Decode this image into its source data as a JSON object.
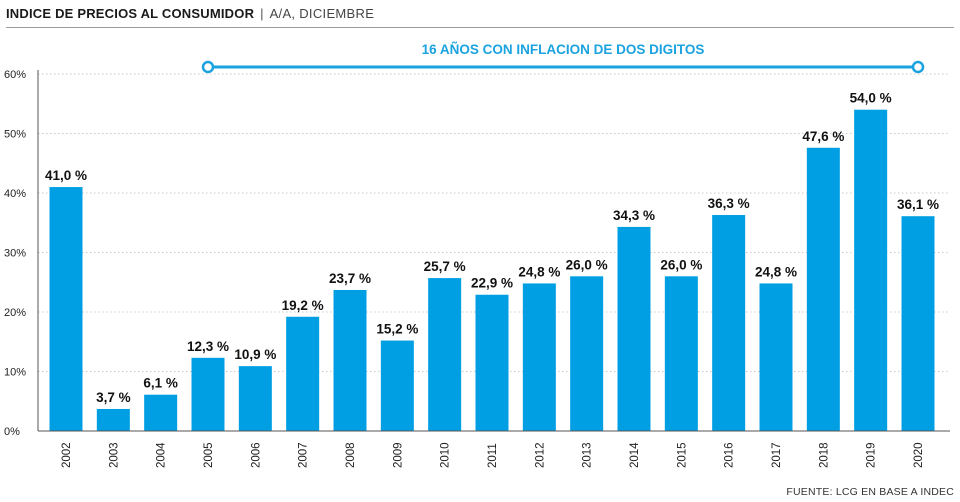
{
  "header": {
    "title": "INDICE DE PRECIOS AL CONSUMIDOR",
    "separator": "|",
    "subtitle": "A/A, DICIEMBRE"
  },
  "annotation": {
    "label": "16 AÑOS CON INFLACION DE DOS DIGITOS",
    "from": "2005",
    "to": "2020",
    "color": "#1ba3e0"
  },
  "source": "FUENTE: LCG EN BASE A INDEC",
  "chart_data": {
    "type": "bar",
    "title": "INDICE DE PRECIOS AL CONSUMIDOR",
    "subtitle": "A/A, DICIEMBRE",
    "categories": [
      "2002",
      "2003",
      "2004",
      "2005",
      "2006",
      "2007",
      "2008",
      "2009",
      "2010",
      "2011",
      "2012",
      "2013",
      "2014",
      "2015",
      "2016",
      "2017",
      "2018",
      "2019",
      "2020"
    ],
    "values": [
      41.0,
      3.7,
      6.1,
      12.3,
      10.9,
      19.2,
      23.7,
      15.2,
      25.7,
      22.9,
      24.8,
      26.0,
      34.3,
      26.0,
      36.3,
      24.8,
      47.6,
      54.0,
      36.1
    ],
    "value_labels": [
      "41,0 %",
      "3,7 %",
      "6,1 %",
      "12,3 %",
      "10,9 %",
      "19,2 %",
      "23,7 %",
      "15,2 %",
      "25,7 %",
      "22,9 %",
      "24,8 %",
      "26,0 %",
      "34,3 %",
      "26,0 %",
      "36,3 %",
      "24,8 %",
      "47,6 %",
      "54,0 %",
      "36,1 %"
    ],
    "ylim": [
      0,
      60
    ],
    "y_ticks": [
      0,
      10,
      20,
      30,
      40,
      50,
      60
    ],
    "y_tick_labels": [
      "0%",
      "10%",
      "20%",
      "30%",
      "40%",
      "50%",
      "60%"
    ],
    "grid": true,
    "bar_color": "#009fe3"
  }
}
